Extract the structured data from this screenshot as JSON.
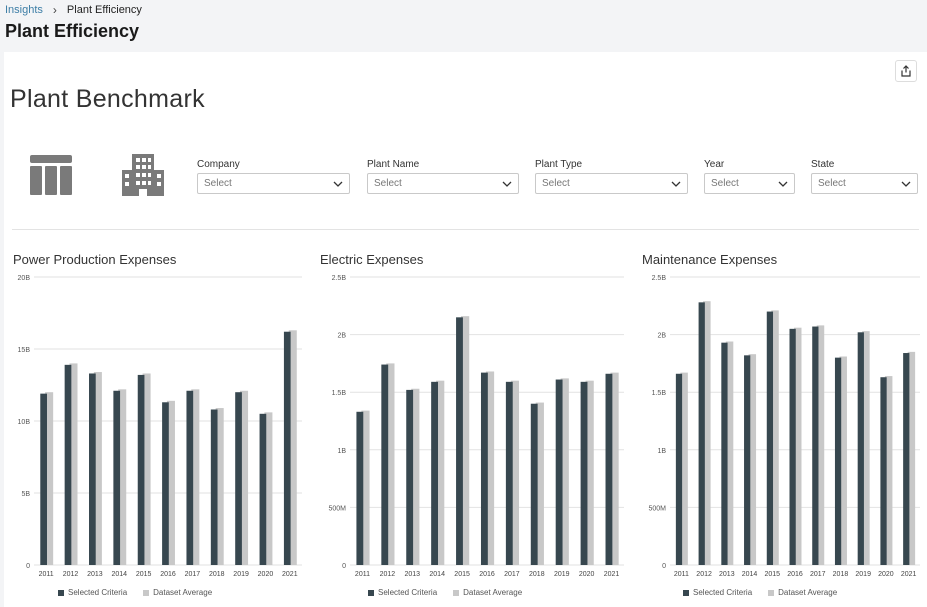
{
  "breadcrumb": {
    "parent": "Insights",
    "current": "Plant Efficiency"
  },
  "page_title": "Plant Efficiency",
  "card_title": "Plant Benchmark",
  "icons": {
    "share": "share-icon",
    "table": "table-icon",
    "building": "building-icon",
    "chevron": "chevron-down-icon"
  },
  "filters": [
    {
      "label": "Company",
      "value": "Select"
    },
    {
      "label": "Plant Name",
      "value": "Select"
    },
    {
      "label": "Plant Type",
      "value": "Select"
    },
    {
      "label": "Year",
      "value": "Select"
    },
    {
      "label": "State",
      "value": "Select"
    }
  ],
  "colors": {
    "selected": "#37474f",
    "average": "#c8c8c8",
    "grid": "#e2e2e2",
    "accent": "#3d7ea6"
  },
  "chart_data": [
    {
      "type": "bar",
      "title": "Power Production Expenses",
      "categories": [
        "2011",
        "2012",
        "2013",
        "2014",
        "2015",
        "2016",
        "2017",
        "2018",
        "2019",
        "2020",
        "2021"
      ],
      "yticks": [
        "0",
        "5B",
        "10B",
        "15B",
        "20B"
      ],
      "ylim": [
        0,
        20
      ],
      "series": [
        {
          "name": "Selected Criteria",
          "values": [
            11.9,
            13.9,
            13.3,
            12.1,
            13.2,
            11.3,
            12.1,
            10.8,
            12.0,
            10.5,
            16.2
          ]
        },
        {
          "name": "Dataset Average",
          "values": [
            12.0,
            14.0,
            13.4,
            12.2,
            13.3,
            11.4,
            12.2,
            10.9,
            12.1,
            10.6,
            16.3
          ]
        }
      ]
    },
    {
      "type": "bar",
      "title": "Electric Expenses",
      "categories": [
        "2011",
        "2012",
        "2013",
        "2014",
        "2015",
        "2016",
        "2017",
        "2018",
        "2019",
        "2020",
        "2021"
      ],
      "yticks": [
        "0",
        "500M",
        "1B",
        "1.5B",
        "2B",
        "2.5B"
      ],
      "ylim": [
        0,
        2.5
      ],
      "series": [
        {
          "name": "Selected Criteria",
          "values": [
            1.33,
            1.74,
            1.52,
            1.59,
            2.15,
            1.67,
            1.59,
            1.4,
            1.61,
            1.59,
            1.66
          ]
        },
        {
          "name": "Dataset Average",
          "values": [
            1.34,
            1.75,
            1.53,
            1.6,
            2.16,
            1.68,
            1.6,
            1.41,
            1.62,
            1.6,
            1.67
          ]
        }
      ]
    },
    {
      "type": "bar",
      "title": "Maintenance Expenses",
      "categories": [
        "2011",
        "2012",
        "2013",
        "2014",
        "2015",
        "2016",
        "2017",
        "2018",
        "2019",
        "2020",
        "2021"
      ],
      "yticks": [
        "0",
        "500M",
        "1B",
        "1.5B",
        "2B",
        "2.5B"
      ],
      "ylim": [
        0,
        2.5
      ],
      "series": [
        {
          "name": "Selected Criteria",
          "values": [
            1.66,
            2.28,
            1.93,
            1.82,
            2.2,
            2.05,
            2.07,
            1.8,
            2.02,
            1.63,
            1.84
          ]
        },
        {
          "name": "Dataset Average",
          "values": [
            1.67,
            2.29,
            1.94,
            1.83,
            2.21,
            2.06,
            2.08,
            1.81,
            2.03,
            1.64,
            1.85
          ]
        }
      ]
    }
  ]
}
